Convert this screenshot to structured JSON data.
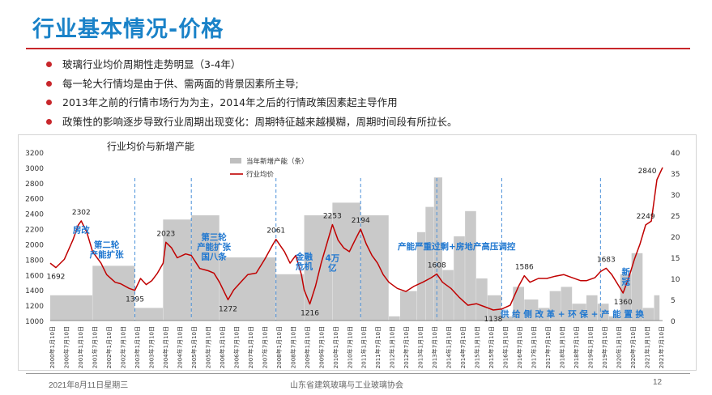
{
  "page": {
    "title": "行业基本情况-价格",
    "bullets": [
      "玻璃行业均价周期性走势明显（3-4年）",
      "每一轮大行情均是由于供、需两面的背景因素所主导;",
      "2013年之前的行情市场行为为主，2014年之后的行情政策因素起主导作用",
      "政策性的影响逐步导致行业周期出现变化：周期特征越来越模糊，周期时间段有所拉长。"
    ],
    "footer": {
      "date": "2021年8月11日星期三",
      "org": "山东省建筑玻璃与工业玻璃协会",
      "page": "12"
    },
    "colors": {
      "title": "#1a82c8",
      "accent": "#c8262b",
      "price_line": "#c00000",
      "bars": "#bfbfbf",
      "annotation": "#1f77d0",
      "vline": "#4a90d9"
    }
  },
  "chart_data": {
    "type": "bar+line",
    "title": "行业均价与新增产能",
    "legend": {
      "position": "top-left",
      "entries": [
        "当年新增产能（条）",
        "行业均价"
      ]
    },
    "y_left": {
      "min": 1000,
      "max": 3200,
      "ticks": [
        "1000",
        "1200",
        "1400",
        "1600",
        "1800",
        "2000",
        "2200",
        "2400",
        "2600",
        "2800",
        "3000",
        "3200"
      ]
    },
    "y_right": {
      "min": 0,
      "max": 40,
      "ticks": [
        "0",
        "5",
        "10",
        "15",
        "20",
        "25",
        "30",
        "35",
        "40"
      ]
    },
    "x_labels": [
      "2000年1月10日",
      "2000年7月10日",
      "2001年1月10日",
      "2001年7月10日",
      "2002年1月10日",
      "2002年7月10日",
      "2003年1月10日",
      "2003年7月10日",
      "2004年1月10日",
      "2004年7月10日",
      "2005年1月10日",
      "2005年7月10日",
      "2006年1月10日",
      "2006年7月10日",
      "2007年1月10日",
      "2007年7月10日",
      "2008年1月10日",
      "2008年7月10日",
      "2009年1月10日",
      "2009年7月10日",
      "2010年1月10日",
      "2010年7月10日",
      "2011年1月10日",
      "2011年7月10日",
      "2012年1月10日",
      "2012年7月10日",
      "2013年1月10日",
      "2013年7月10日",
      "2014年1月10日",
      "2014年7月10日",
      "2015年1月10日",
      "2015年7月10日",
      "2016年1月10日",
      "2016年7月10日",
      "2017年1月10日",
      "2017年7月10日",
      "2018年1月10日",
      "2018年7月10日",
      "2019年1月10日",
      "2019年7月10日",
      "2020年1月10日",
      "2020年7月10日",
      "2021年1月10日",
      "2021年7月10日"
    ],
    "capacity_bars": [
      {
        "from": 2000.0,
        "to": 2001.5,
        "value": 6
      },
      {
        "from": 2001.5,
        "to": 2003.0,
        "value": 13
      },
      {
        "from": 2003.0,
        "to": 2004.0,
        "value": 3
      },
      {
        "from": 2004.0,
        "to": 2005.0,
        "value": 24
      },
      {
        "from": 2005.0,
        "to": 2006.0,
        "value": 25
      },
      {
        "from": 2006.0,
        "to": 2008.0,
        "value": 15
      },
      {
        "from": 2008.0,
        "to": 2009.0,
        "value": 11
      },
      {
        "from": 2009.0,
        "to": 2010.0,
        "value": 25
      },
      {
        "from": 2010.0,
        "to": 2011.0,
        "value": 28
      },
      {
        "from": 2011.0,
        "to": 2012.0,
        "value": 25
      },
      {
        "from": 2012.0,
        "to": 2012.4,
        "value": 1
      },
      {
        "from": 2012.4,
        "to": 2013.0,
        "value": 7
      },
      {
        "from": 2013.0,
        "to": 2013.3,
        "value": 21
      },
      {
        "from": 2013.3,
        "to": 2013.6,
        "value": 27
      },
      {
        "from": 2013.6,
        "to": 2013.9,
        "value": 34
      },
      {
        "from": 2013.9,
        "to": 2014.3,
        "value": 12
      },
      {
        "from": 2014.3,
        "to": 2014.7,
        "value": 20
      },
      {
        "from": 2014.7,
        "to": 2015.1,
        "value": 26
      },
      {
        "from": 2015.1,
        "to": 2015.5,
        "value": 10
      },
      {
        "from": 2015.5,
        "to": 2016.0,
        "value": 6
      },
      {
        "from": 2016.0,
        "to": 2016.4,
        "value": 1
      },
      {
        "from": 2016.4,
        "to": 2016.8,
        "value": 8
      },
      {
        "from": 2016.8,
        "to": 2017.3,
        "value": 5
      },
      {
        "from": 2017.3,
        "to": 2017.7,
        "value": 3
      },
      {
        "from": 2017.7,
        "to": 2018.1,
        "value": 7
      },
      {
        "from": 2018.1,
        "to": 2018.5,
        "value": 8
      },
      {
        "from": 2018.5,
        "to": 2019.0,
        "value": 4
      },
      {
        "from": 2019.0,
        "to": 2019.4,
        "value": 6
      },
      {
        "from": 2019.4,
        "to": 2019.8,
        "value": 4
      },
      {
        "from": 2019.8,
        "to": 2020.2,
        "value": 1
      },
      {
        "from": 2020.2,
        "to": 2020.6,
        "value": 11
      },
      {
        "from": 2020.6,
        "to": 2021.0,
        "value": 16
      },
      {
        "from": 2021.0,
        "to": 2021.4,
        "value": 3
      },
      {
        "from": 2021.4,
        "to": 2021.6,
        "value": 6
      }
    ],
    "price_series": [
      [
        2000.0,
        1750
      ],
      [
        2000.2,
        1692
      ],
      [
        2000.5,
        1800
      ],
      [
        2000.8,
        2050
      ],
      [
        2001.0,
        2250
      ],
      [
        2001.1,
        2302
      ],
      [
        2001.3,
        2150
      ],
      [
        2001.5,
        1900
      ],
      [
        2001.8,
        1750
      ],
      [
        2002.0,
        1600
      ],
      [
        2002.3,
        1500
      ],
      [
        2002.5,
        1480
      ],
      [
        2002.8,
        1420
      ],
      [
        2003.0,
        1395
      ],
      [
        2003.2,
        1550
      ],
      [
        2003.4,
        1470
      ],
      [
        2003.6,
        1520
      ],
      [
        2003.8,
        1620
      ],
      [
        2004.0,
        1750
      ],
      [
        2004.1,
        2023
      ],
      [
        2004.3,
        1950
      ],
      [
        2004.5,
        1820
      ],
      [
        2004.8,
        1870
      ],
      [
        2005.0,
        1850
      ],
      [
        2005.3,
        1680
      ],
      [
        2005.6,
        1650
      ],
      [
        2005.8,
        1620
      ],
      [
        2006.0,
        1500
      ],
      [
        2006.3,
        1272
      ],
      [
        2006.5,
        1400
      ],
      [
        2006.8,
        1520
      ],
      [
        2007.0,
        1600
      ],
      [
        2007.3,
        1620
      ],
      [
        2007.6,
        1800
      ],
      [
        2007.9,
        2000
      ],
      [
        2008.0,
        2061
      ],
      [
        2008.3,
        1900
      ],
      [
        2008.5,
        1750
      ],
      [
        2008.7,
        1850
      ],
      [
        2008.9,
        1600
      ],
      [
        2009.0,
        1400
      ],
      [
        2009.2,
        1216
      ],
      [
        2009.4,
        1450
      ],
      [
        2009.6,
        1750
      ],
      [
        2009.8,
        2000
      ],
      [
        2010.0,
        2253
      ],
      [
        2010.2,
        2050
      ],
      [
        2010.4,
        1950
      ],
      [
        2010.6,
        1900
      ],
      [
        2010.8,
        2050
      ],
      [
        2011.0,
        2194
      ],
      [
        2011.2,
        2000
      ],
      [
        2011.4,
        1850
      ],
      [
        2011.6,
        1750
      ],
      [
        2011.8,
        1600
      ],
      [
        2012.0,
        1500
      ],
      [
        2012.3,
        1420
      ],
      [
        2012.6,
        1380
      ],
      [
        2012.9,
        1450
      ],
      [
        2013.2,
        1500
      ],
      [
        2013.5,
        1560
      ],
      [
        2013.7,
        1608
      ],
      [
        2013.9,
        1500
      ],
      [
        2014.2,
        1420
      ],
      [
        2014.5,
        1300
      ],
      [
        2014.8,
        1200
      ],
      [
        2015.1,
        1220
      ],
      [
        2015.4,
        1180
      ],
      [
        2015.7,
        1138
      ],
      [
        2016.0,
        1150
      ],
      [
        2016.3,
        1200
      ],
      [
        2016.6,
        1450
      ],
      [
        2016.8,
        1586
      ],
      [
        2017.0,
        1500
      ],
      [
        2017.3,
        1550
      ],
      [
        2017.6,
        1550
      ],
      [
        2017.9,
        1580
      ],
      [
        2018.2,
        1600
      ],
      [
        2018.5,
        1560
      ],
      [
        2018.8,
        1520
      ],
      [
        2019.0,
        1520
      ],
      [
        2019.3,
        1560
      ],
      [
        2019.5,
        1640
      ],
      [
        2019.7,
        1683
      ],
      [
        2019.9,
        1600
      ],
      [
        2020.1,
        1480
      ],
      [
        2020.3,
        1360
      ],
      [
        2020.5,
        1560
      ],
      [
        2020.7,
        1800
      ],
      [
        2020.9,
        2000
      ],
      [
        2021.1,
        2249
      ],
      [
        2021.3,
        2300
      ],
      [
        2021.5,
        2840
      ],
      [
        2021.7,
        3000
      ]
    ],
    "point_labels": [
      {
        "x": 2000.2,
        "y": 1692,
        "text": "1692"
      },
      {
        "x": 2001.1,
        "y": 2302,
        "text": "2302"
      },
      {
        "x": 2003.0,
        "y": 1395,
        "text": "1395"
      },
      {
        "x": 2004.1,
        "y": 2023,
        "text": "2023"
      },
      {
        "x": 2006.3,
        "y": 1272,
        "text": "1272"
      },
      {
        "x": 2008.0,
        "y": 2061,
        "text": "2061"
      },
      {
        "x": 2009.2,
        "y": 1216,
        "text": "1216"
      },
      {
        "x": 2010.0,
        "y": 2253,
        "text": "2253"
      },
      {
        "x": 2011.0,
        "y": 2194,
        "text": "2194"
      },
      {
        "x": 2013.7,
        "y": 1608,
        "text": "1608"
      },
      {
        "x": 2015.7,
        "y": 1138,
        "text": "1138"
      },
      {
        "x": 2016.8,
        "y": 1586,
        "text": "1586"
      },
      {
        "x": 2019.7,
        "y": 1683,
        "text": "1683"
      },
      {
        "x": 2020.3,
        "y": 1360,
        "text": "1360"
      },
      {
        "x": 2021.1,
        "y": 2249,
        "text": "2249"
      },
      {
        "x": 2021.5,
        "y": 2840,
        "text": "2840"
      }
    ],
    "annotations": [
      {
        "x": 2001.1,
        "y": 2150,
        "lines": [
          "房改"
        ]
      },
      {
        "x": 2002.0,
        "y": 1950,
        "lines": [
          "第二轮",
          "产能扩张"
        ]
      },
      {
        "x": 2005.8,
        "y": 2050,
        "lines": [
          "第三轮",
          "产能扩张",
          "国八条"
        ]
      },
      {
        "x": 2009.0,
        "y": 1800,
        "lines": [
          "金融",
          "危机"
        ]
      },
      {
        "x": 2010.0,
        "y": 1780,
        "lines": [
          "4万",
          "亿"
        ]
      },
      {
        "x": 2014.4,
        "y": 1930,
        "lines": [
          "产能严重过剩+房地产高压调控"
        ]
      },
      {
        "x": 2018.5,
        "y": 1050,
        "lines": [
          "供 给 侧 改 革 + 环 保 + 产 能 置 换"
        ]
      },
      {
        "x": 2020.4,
        "y": 1600,
        "lines": [
          "新",
          "冠"
        ]
      }
    ],
    "reference_lines_x": [
      2003.0,
      2005.0,
      2008.0,
      2011.0,
      2013.7,
      2016.0,
      2019.5
    ]
  }
}
